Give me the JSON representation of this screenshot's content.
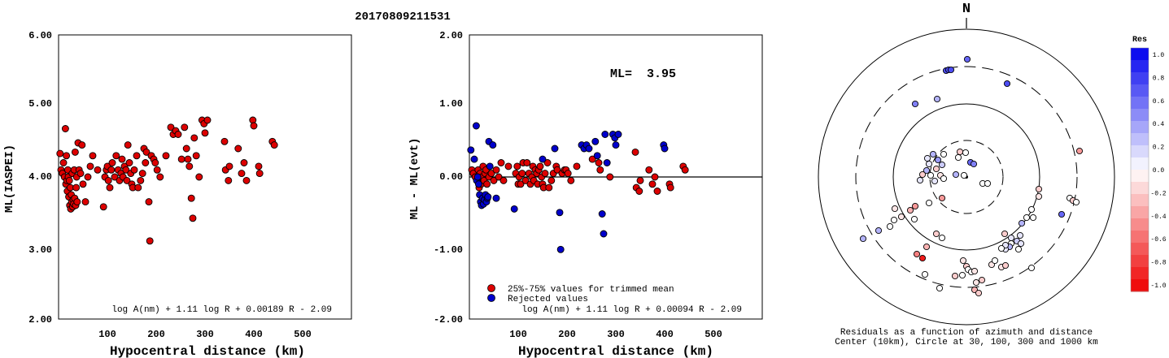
{
  "title": "20170809211531",
  "chart_data": [
    {
      "type": "scatter",
      "ylabel": "ML(IASPEI)",
      "xlabel": "Hypocentral distance (km)",
      "xlim": [
        0,
        600
      ],
      "ylim": [
        2.0,
        6.0
      ],
      "x_ticks": [
        "100",
        "200",
        "300",
        "400",
        "500"
      ],
      "y_ticks": [
        "2.00",
        "3.00",
        "4.00",
        "5.00",
        "6.00"
      ],
      "formula": "log A(nm) + 1.11 log R + 0.00189 R - 2.09",
      "point_color": "#dd0000",
      "points": [
        [
          3,
          4.33
        ],
        [
          5,
          4.1
        ],
        [
          8,
          4.05
        ],
        [
          10,
          4.2
        ],
        [
          12,
          4.0
        ],
        [
          14,
          4.68
        ],
        [
          15,
          3.9
        ],
        [
          16,
          4.3
        ],
        [
          17,
          3.95
        ],
        [
          18,
          3.8
        ],
        [
          19,
          4.1
        ],
        [
          20,
          4.0
        ],
        [
          21,
          3.72
        ],
        [
          22,
          3.95
        ],
        [
          23,
          3.6
        ],
        [
          24,
          3.85
        ],
        [
          25,
          3.55
        ],
        [
          26,
          3.75
        ],
        [
          27,
          3.65
        ],
        [
          28,
          4.05
        ],
        [
          29,
          3.58
        ],
        [
          30,
          3.68
        ],
        [
          31,
          3.62
        ],
        [
          32,
          4.1
        ],
        [
          33,
          3.7
        ],
        [
          34,
          4.35
        ],
        [
          35,
          3.6
        ],
        [
          36,
          3.85
        ],
        [
          37,
          4.0
        ],
        [
          38,
          3.65
        ],
        [
          40,
          4.48
        ],
        [
          42,
          4.1
        ],
        [
          45,
          4.05
        ],
        [
          48,
          4.45
        ],
        [
          50,
          3.9
        ],
        [
          55,
          3.65
        ],
        [
          60,
          4.0
        ],
        [
          65,
          4.15
        ],
        [
          70,
          4.3
        ],
        [
          80,
          4.1
        ],
        [
          92,
          3.58
        ],
        [
          95,
          4.0
        ],
        [
          98,
          4.1
        ],
        [
          100,
          4.15
        ],
        [
          102,
          3.95
        ],
        [
          105,
          3.85
        ],
        [
          108,
          4.1
        ],
        [
          110,
          4.2
        ],
        [
          115,
          4.0
        ],
        [
          118,
          4.3
        ],
        [
          122,
          4.1
        ],
        [
          125,
          3.95
        ],
        [
          128,
          4.05
        ],
        [
          130,
          4.25
        ],
        [
          132,
          4.0
        ],
        [
          135,
          4.15
        ],
        [
          138,
          4.1
        ],
        [
          140,
          3.95
        ],
        [
          142,
          4.45
        ],
        [
          145,
          4.2
        ],
        [
          148,
          4.05
        ],
        [
          150,
          3.9
        ],
        [
          152,
          3.85
        ],
        [
          155,
          4.1
        ],
        [
          160,
          4.3
        ],
        [
          163,
          3.85
        ],
        [
          168,
          3.95
        ],
        [
          172,
          4.05
        ],
        [
          175,
          4.4
        ],
        [
          178,
          4.2
        ],
        [
          180,
          4.35
        ],
        [
          185,
          3.65
        ],
        [
          187,
          3.1
        ],
        [
          190,
          4.3
        ],
        [
          195,
          4.25
        ],
        [
          198,
          4.2
        ],
        [
          202,
          4.1
        ],
        [
          208,
          4.0
        ],
        [
          220,
          4.3
        ],
        [
          230,
          4.7
        ],
        [
          235,
          4.6
        ],
        [
          240,
          4.65
        ],
        [
          245,
          4.6
        ],
        [
          252,
          4.25
        ],
        [
          258,
          4.7
        ],
        [
          262,
          4.4
        ],
        [
          265,
          4.25
        ],
        [
          268,
          4.15
        ],
        [
          272,
          3.7
        ],
        [
          275,
          3.42
        ],
        [
          278,
          4.55
        ],
        [
          282,
          4.3
        ],
        [
          288,
          4.0
        ],
        [
          294,
          4.8
        ],
        [
          298,
          4.75
        ],
        [
          300,
          4.62
        ],
        [
          305,
          4.8
        ],
        [
          340,
          4.5
        ],
        [
          342,
          4.1
        ],
        [
          348,
          3.95
        ],
        [
          350,
          4.15
        ],
        [
          368,
          4.4
        ],
        [
          375,
          4.05
        ],
        [
          380,
          4.2
        ],
        [
          385,
          3.95
        ],
        [
          398,
          4.8
        ],
        [
          400,
          4.72
        ],
        [
          410,
          4.15
        ],
        [
          412,
          4.05
        ],
        [
          438,
          4.5
        ],
        [
          442,
          4.45
        ]
      ]
    },
    {
      "type": "scatter",
      "ylabel": "ML - ML(evt)",
      "xlabel": "Hypocentral distance (km)",
      "xlim": [
        0,
        600
      ],
      "ylim": [
        -2.0,
        2.0
      ],
      "x_ticks": [
        "100",
        "200",
        "300",
        "400",
        "500"
      ],
      "y_ticks": [
        "-2.00",
        "-1.00",
        "0.00",
        "1.00",
        "2.00"
      ],
      "ml_label": "ML=",
      "ml_value": "3.95",
      "formula": "log A(nm) + 1.11 log R + 0.00094 R - 2.09",
      "legend": [
        {
          "label": "25%-75% values for trimmed mean",
          "color": "#dd0000"
        },
        {
          "label": "Rejected values",
          "color": "#0000cc"
        }
      ],
      "red_points": [
        [
          5,
          0.1
        ],
        [
          8,
          0.05
        ],
        [
          12,
          0.0
        ],
        [
          16,
          -0.05
        ],
        [
          18,
          0.1
        ],
        [
          20,
          -0.15
        ],
        [
          22,
          0.05
        ],
        [
          24,
          -0.1
        ],
        [
          26,
          0.0
        ],
        [
          28,
          0.15
        ],
        [
          30,
          -0.05
        ],
        [
          32,
          0.05
        ],
        [
          34,
          0.1
        ],
        [
          36,
          -0.1
        ],
        [
          40,
          0.0
        ],
        [
          45,
          0.05
        ],
        [
          50,
          -0.05
        ],
        [
          55,
          0.1
        ],
        [
          60,
          0.0
        ],
        [
          65,
          0.2
        ],
        [
          70,
          -0.05
        ],
        [
          80,
          0.15
        ],
        [
          95,
          0.05
        ],
        [
          98,
          0.15
        ],
        [
          100,
          -0.1
        ],
        [
          102,
          0.0
        ],
        [
          105,
          -0.1
        ],
        [
          108,
          0.05
        ],
        [
          110,
          0.2
        ],
        [
          115,
          -0.05
        ],
        [
          118,
          0.2
        ],
        [
          122,
          0.05
        ],
        [
          125,
          -0.1
        ],
        [
          128,
          0.0
        ],
        [
          130,
          0.15
        ],
        [
          132,
          -0.05
        ],
        [
          135,
          0.1
        ],
        [
          138,
          0.05
        ],
        [
          140,
          -0.1
        ],
        [
          142,
          0.1
        ],
        [
          145,
          0.15
        ],
        [
          148,
          0.0
        ],
        [
          150,
          -0.1
        ],
        [
          152,
          -0.15
        ],
        [
          155,
          0.05
        ],
        [
          160,
          0.2
        ],
        [
          163,
          -0.15
        ],
        [
          168,
          -0.05
        ],
        [
          172,
          0.05
        ],
        [
          178,
          0.15
        ],
        [
          180,
          0.1
        ],
        [
          190,
          0.05
        ],
        [
          195,
          0.1
        ],
        [
          198,
          0.1
        ],
        [
          202,
          0.05
        ],
        [
          208,
          -0.05
        ],
        [
          220,
          0.15
        ],
        [
          252,
          0.25
        ],
        [
          265,
          0.2
        ],
        [
          268,
          0.1
        ],
        [
          288,
          0.0
        ],
        [
          340,
          0.35
        ],
        [
          342,
          -0.15
        ],
        [
          348,
          -0.2
        ],
        [
          350,
          -0.05
        ],
        [
          368,
          0.1
        ],
        [
          375,
          -0.1
        ],
        [
          380,
          0.0
        ],
        [
          385,
          -0.2
        ],
        [
          410,
          -0.1
        ],
        [
          412,
          -0.15
        ],
        [
          438,
          0.15
        ],
        [
          442,
          0.1
        ]
      ],
      "blue_points": [
        [
          3,
          0.38
        ],
        [
          10,
          0.25
        ],
        [
          14,
          0.72
        ],
        [
          15,
          -0.05
        ],
        [
          17,
          0.0
        ],
        [
          19,
          -0.1
        ],
        [
          21,
          -0.25
        ],
        [
          23,
          -0.35
        ],
        [
          25,
          -0.4
        ],
        [
          27,
          -0.3
        ],
        [
          29,
          -0.38
        ],
        [
          31,
          -0.32
        ],
        [
          33,
          -0.25
        ],
        [
          35,
          -0.35
        ],
        [
          37,
          -0.3
        ],
        [
          38,
          -0.28
        ],
        [
          40,
          0.5
        ],
        [
          42,
          0.15
        ],
        [
          48,
          0.45
        ],
        [
          55,
          -0.3
        ],
        [
          92,
          -0.45
        ],
        [
          150,
          0.25
        ],
        [
          175,
          0.4
        ],
        [
          185,
          -0.5
        ],
        [
          187,
          -1.02
        ],
        [
          230,
          0.45
        ],
        [
          235,
          0.4
        ],
        [
          240,
          0.45
        ],
        [
          245,
          0.4
        ],
        [
          258,
          0.5
        ],
        [
          262,
          0.3
        ],
        [
          272,
          -0.52
        ],
        [
          275,
          -0.8
        ],
        [
          278,
          0.6
        ],
        [
          282,
          0.2
        ],
        [
          294,
          0.6
        ],
        [
          298,
          0.55
        ],
        [
          300,
          0.45
        ],
        [
          305,
          0.6
        ],
        [
          398,
          0.45
        ],
        [
          400,
          0.4
        ]
      ]
    },
    {
      "type": "polar-scatter",
      "north_label": "N",
      "caption_line1": "Residuals as a function of azimuth and distance",
      "caption_line2": "Center (10km), Circle at 30, 100, 300 and 1000 km",
      "colorbar_title": "Res",
      "colorbar_ticks": [
        "1.0",
        "0.8",
        "0.6",
        "0.4",
        "0.2",
        "0.0",
        "-0.2",
        "-0.4",
        "-0.6",
        "-0.8",
        "-1.0"
      ],
      "color_positive": "#0000ee",
      "color_negative": "#ee0000",
      "points": [
        [
          1163,
          87,
          0.7
        ],
        [
          1166,
          86,
          0.7
        ],
        [
          1169,
          86,
          0.7
        ],
        [
          1189,
          73,
          0.6
        ],
        [
          1238,
          103,
          0.7
        ],
        [
          1125,
          128,
          0.5
        ],
        [
          1152,
          122,
          0.3
        ],
        [
          1147,
          190,
          0.3
        ],
        [
          1160,
          190,
          0.0
        ],
        [
          1140,
          195,
          0.1
        ],
        [
          1153,
          197,
          0.4
        ],
        [
          1142,
          202,
          0.1
        ],
        [
          1158,
          203,
          0.2
        ],
        [
          1139,
          210,
          0.3
        ],
        [
          1151,
          208,
          -0.2
        ],
        [
          1134,
          215,
          -0.2
        ],
        [
          1144,
          216,
          0.0
        ],
        [
          1156,
          216,
          -0.1
        ],
        [
          1131,
          222,
          0.1
        ],
        [
          1160,
          220,
          0.0
        ],
        [
          1149,
          223,
          0.1
        ],
        [
          1180,
          187,
          -0.2
        ],
        [
          1187,
          188,
          0.0
        ],
        [
          1178,
          194,
          0.0
        ],
        [
          1193,
          200,
          0.6
        ],
        [
          1197,
          202,
          0.5
        ],
        [
          1175,
          215,
          0.3
        ],
        [
          1185,
          216,
          0.0
        ],
        [
          1208,
          226,
          0.0
        ],
        [
          1214,
          226,
          0.0
        ],
        [
          1327,
          186,
          -0.4
        ],
        [
          1277,
          233,
          -0.2
        ],
        [
          1277,
          242,
          -0.1
        ],
        [
          1315,
          244,
          0.0
        ],
        [
          1319,
          247,
          -0.2
        ],
        [
          1323,
          249,
          0.0
        ],
        [
          1305,
          264,
          0.6
        ],
        [
          1268,
          258,
          0.0
        ],
        [
          1262,
          268,
          0.0
        ],
        [
          1270,
          268,
          0.0
        ],
        [
          1256,
          275,
          0.3
        ],
        [
          1235,
          288,
          -0.2
        ],
        [
          1243,
          293,
          0.1
        ],
        [
          1254,
          290,
          0.1
        ],
        [
          1250,
          297,
          0.2
        ],
        [
          1243,
          300,
          0.0
        ],
        [
          1255,
          300,
          0.1
        ],
        [
          1241,
          304,
          0.3
        ],
        [
          1236,
          307,
          0.1
        ],
        [
          1236,
          302,
          0.1
        ],
        [
          1231,
          306,
          0.0
        ],
        [
          1252,
          307,
          0.0
        ],
        [
          1158,
          244,
          -0.4
        ],
        [
          1142,
          250,
          0.0
        ],
        [
          1125,
          254,
          -0.4
        ],
        [
          1100,
          257,
          -0.1
        ],
        [
          1119,
          259,
          -0.3
        ],
        [
          1108,
          267,
          -0.1
        ],
        [
          1124,
          270,
          0.0
        ],
        [
          1099,
          271,
          0.0
        ],
        [
          1080,
          284,
          0.3
        ],
        [
          1094,
          279,
          0.0
        ],
        [
          1061,
          294,
          0.3
        ],
        [
          1151,
          288,
          -0.2
        ],
        [
          1158,
          293,
          0.0
        ],
        [
          1139,
          304,
          -0.3
        ],
        [
          1127,
          313,
          -0.5
        ],
        [
          1134,
          318,
          -0.9
        ],
        [
          1137,
          338,
          0.0
        ],
        [
          1184,
          321,
          -0.1
        ],
        [
          1188,
          328,
          -0.2
        ],
        [
          1190,
          332,
          0.0
        ],
        [
          1194,
          335,
          0.0
        ],
        [
          1198,
          334,
          -0.1
        ],
        [
          1219,
          326,
          -0.1
        ],
        [
          1223,
          321,
          0.0
        ],
        [
          1231,
          329,
          -0.1
        ],
        [
          1236,
          327,
          -0.2
        ],
        [
          1268,
          330,
          0.0
        ],
        [
          1174,
          340,
          -0.2
        ],
        [
          1183,
          339,
          0.0
        ],
        [
          1155,
          355,
          0.0
        ],
        [
          1200,
          348,
          -0.1
        ],
        [
          1207,
          345,
          -0.2
        ],
        [
          1198,
          357,
          -0.3
        ],
        [
          1203,
          361,
          -0.2
        ]
      ]
    }
  ]
}
